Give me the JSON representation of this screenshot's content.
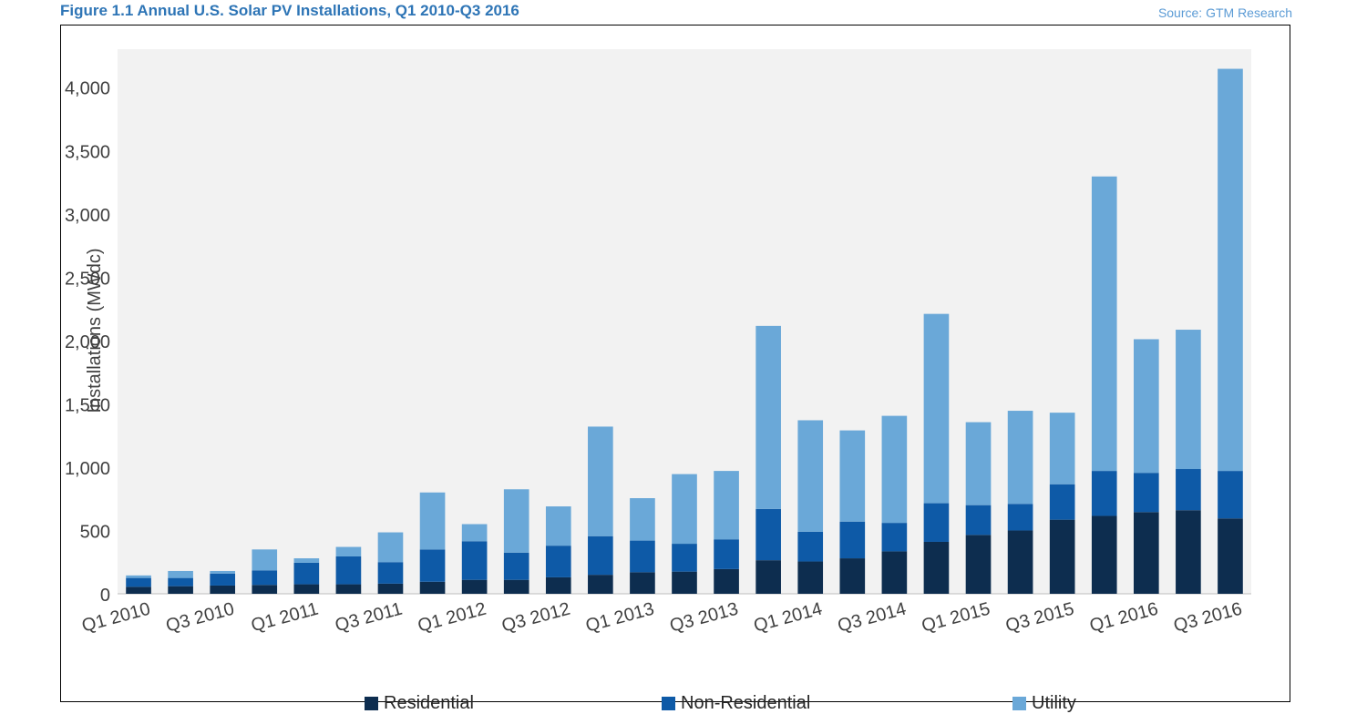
{
  "header": {
    "title": "Figure 1.1 Annual U.S. Solar PV Installations, Q1 2010-Q3 2016",
    "source": "Source: GTM Research"
  },
  "colors": {
    "residential": "#0d2d4f",
    "non_residential": "#0e5aa7",
    "utility": "#6aa8d8",
    "plot_bg": "#f2f2f2",
    "title": "#2e75b6"
  },
  "chart_data": {
    "type": "bar",
    "stacked": true,
    "ylabel": "Installations (MWdc)",
    "ylim": [
      0,
      4300
    ],
    "yticks": [
      0,
      500,
      1000,
      1500,
      2000,
      2500,
      3000,
      3500,
      4000
    ],
    "ytick_labels": [
      "0",
      "500",
      "1,000",
      "1,500",
      "2,000",
      "2,500",
      "3,000",
      "3,500",
      "4,000"
    ],
    "grid": false,
    "legend_position": "bottom",
    "categories": [
      "Q1 2010",
      "Q2 2010",
      "Q3 2010",
      "Q4 2010",
      "Q1 2011",
      "Q2 2011",
      "Q3 2011",
      "Q4 2011",
      "Q1 2012",
      "Q2 2012",
      "Q3 2012",
      "Q4 2012",
      "Q1 2013",
      "Q2 2013",
      "Q3 2013",
      "Q4 2013",
      "Q1 2014",
      "Q2 2014",
      "Q3 2014",
      "Q4 2014",
      "Q1 2015",
      "Q2 2015",
      "Q3 2015",
      "Q4 2015",
      "Q1 2016",
      "Q2 2016",
      "Q3 2016"
    ],
    "xtick_labels": [
      "Q1 2010",
      "Q3 2010",
      "Q1 2011",
      "Q3 2011",
      "Q1 2012",
      "Q3 2012",
      "Q1 2013",
      "Q3 2013",
      "Q1 2014",
      "Q3 2014",
      "Q1 2015",
      "Q3 2015",
      "Q1 2016",
      "Q3 2016"
    ],
    "series": [
      {
        "name": "Residential",
        "values": [
          55,
          60,
          65,
          70,
          75,
          75,
          80,
          95,
          110,
          110,
          130,
          150,
          170,
          175,
          195,
          265,
          255,
          280,
          335,
          410,
          465,
          500,
          585,
          615,
          645,
          660,
          595
        ]
      },
      {
        "name": "Non-Residential",
        "values": [
          70,
          65,
          95,
          115,
          170,
          220,
          170,
          255,
          305,
          215,
          250,
          305,
          250,
          220,
          235,
          405,
          235,
          290,
          225,
          305,
          235,
          210,
          280,
          355,
          310,
          325,
          375
        ]
      },
      {
        "name": "Utility",
        "values": [
          20,
          55,
          20,
          165,
          35,
          75,
          235,
          450,
          135,
          500,
          310,
          865,
          335,
          550,
          540,
          1445,
          880,
          720,
          845,
          1495,
          655,
          735,
          565,
          2325,
          1055,
          1100,
          3175
        ]
      }
    ]
  },
  "legend": {
    "items": [
      {
        "label": "Residential"
      },
      {
        "label": "Non-Residential"
      },
      {
        "label": "Utility"
      }
    ]
  }
}
